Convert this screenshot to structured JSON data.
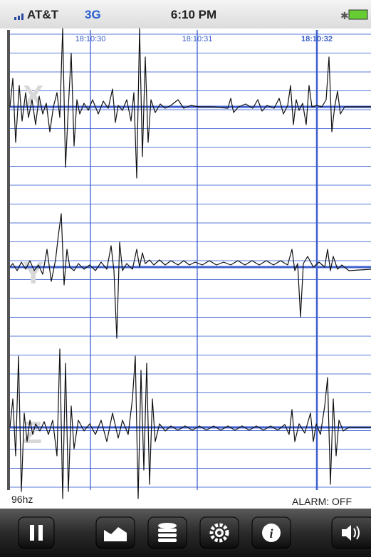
{
  "status_bar": {
    "carrier": "AT&T",
    "network": "3G",
    "time": "6:10 PM"
  },
  "timeline": {
    "labels": [
      "18:10:30",
      "18:10:31",
      "18:10:32"
    ]
  },
  "channels": [
    "X",
    "Y",
    "Z"
  ],
  "footer": {
    "sample_rate": "96hz",
    "alarm": "ALARM: OFF"
  }
}
